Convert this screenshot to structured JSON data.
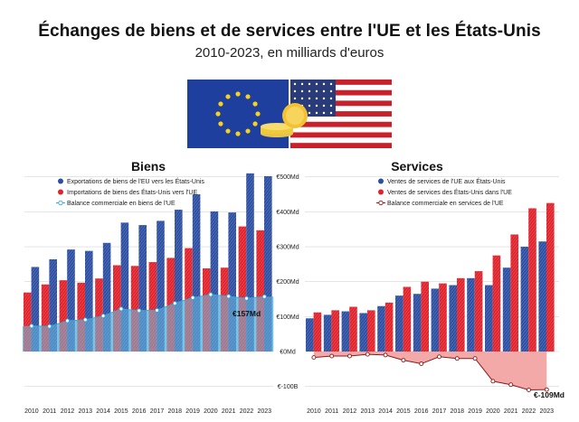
{
  "header": {
    "title": "Échanges de biens et de services entre l'UE et les États-Unis",
    "subtitle": "2010-2023, en milliards d'euros"
  },
  "colors": {
    "blue": "#2d4fa3",
    "red": "#e1222b",
    "light_blue": "#6ec1e4",
    "balance_red": "#f29a9a"
  },
  "icons": [
    "eu-flag-icon",
    "us-flag-icon",
    "coin-stack-icon"
  ],
  "chart_data": [
    {
      "type": "bar",
      "title": "Biens",
      "categories": [
        "2010",
        "2011",
        "2012",
        "2013",
        "2014",
        "2015",
        "2016",
        "2017",
        "2018",
        "2019",
        "2020",
        "2021",
        "2022",
        "2023"
      ],
      "series": [
        {
          "name": "Exportations de biens de l'EU vers les États-Unis",
          "values": [
            242,
            264,
            292,
            288,
            311,
            369,
            362,
            374,
            406,
            450,
            401,
            398,
            510,
            502
          ]
        },
        {
          "name": "Importations de biens des États-Unis vers l'UE",
          "values": [
            169,
            192,
            204,
            197,
            209,
            247,
            245,
            256,
            268,
            296,
            238,
            240,
            358,
            347
          ]
        },
        {
          "name": "Balance commerciale en biens de l'UE",
          "values": [
            73,
            72,
            88,
            91,
            102,
            122,
            117,
            118,
            138,
            154,
            163,
            158,
            152,
            157
          ]
        }
      ],
      "ylim": [
        0,
        500
      ],
      "annotation": "€157Md"
    },
    {
      "type": "bar",
      "title": "Services",
      "categories": [
        "2010",
        "2011",
        "2012",
        "2013",
        "2014",
        "2015",
        "2016",
        "2017",
        "2018",
        "2019",
        "2020",
        "2021",
        "2022",
        "2023"
      ],
      "series": [
        {
          "name": "Ventes de services de l'UE aux États-Unis",
          "values": [
            95,
            105,
            115,
            110,
            130,
            160,
            165,
            180,
            190,
            210,
            190,
            240,
            300,
            315
          ]
        },
        {
          "name": "Ventes de services des États-Unis dans l'UE",
          "values": [
            112,
            118,
            128,
            118,
            140,
            185,
            200,
            195,
            210,
            230,
            275,
            335,
            410,
            425
          ]
        },
        {
          "name": "Balance commerciale en services de l'UE",
          "values": [
            -17,
            -13,
            -13,
            -8,
            -10,
            -25,
            -35,
            -15,
            -20,
            -20,
            -85,
            -95,
            -110,
            -109
          ]
        }
      ],
      "ylim": [
        -100,
        500
      ],
      "annotation": "€-109Md"
    }
  ],
  "axis": {
    "right_ticks": [
      "€500Md",
      "€400Md",
      "€300Md",
      "€200Md",
      "€100Md",
      "€0Md",
      "€-100B"
    ]
  }
}
